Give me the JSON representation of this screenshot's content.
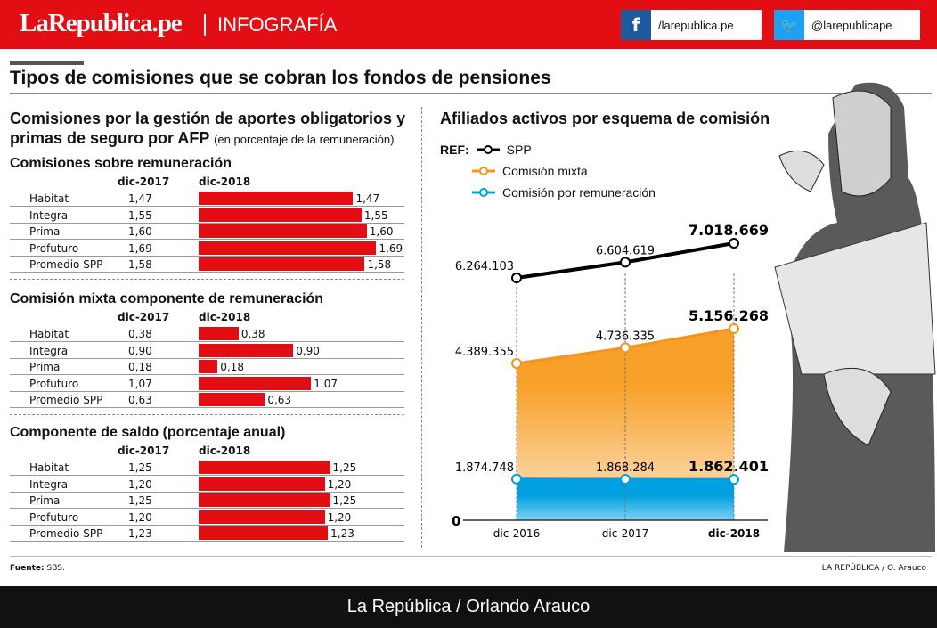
{
  "header": {
    "logo": "LaRepublica.pe",
    "section": "INFOGRAFÍA",
    "facebook": "/larepublica.pe",
    "twitter": "@larepublicape",
    "colors": {
      "brand": "#e30e13",
      "facebook": "#1d5aa0",
      "twitter": "#1da1f2"
    }
  },
  "title": "Tipos de comisiones que se cobran los fondos de pensiones",
  "left": {
    "heading": "Comisiones por la gestión de aportes obligatorios y primas de seguro por AFP",
    "heading_note": "(en porcentaje de la remuneración)",
    "tables": [
      {
        "title": "Comisiones sobre remuneración",
        "col1": "dic-2017",
        "col2": "dic-2018",
        "rows": [
          {
            "name": "Habitat",
            "v2017": "1,47",
            "v2018": "1,47",
            "bar": 1.47
          },
          {
            "name": "Integra",
            "v2017": "1,55",
            "v2018": "1,55",
            "bar": 1.55
          },
          {
            "name": "Prima",
            "v2017": "1,60",
            "v2018": "1,60",
            "bar": 1.6
          },
          {
            "name": "Profuturo",
            "v2017": "1,69",
            "v2018": "1,69",
            "bar": 1.69
          },
          {
            "name": "Promedio SPP",
            "v2017": "1,58",
            "v2018": "1,58",
            "bar": 1.58
          }
        ]
      },
      {
        "title": "Comisión mixta componente de remuneración",
        "col1": "dic-2017",
        "col2": "dic-2018",
        "rows": [
          {
            "name": "Habitat",
            "v2017": "0,38",
            "v2018": "0,38",
            "bar": 0.38
          },
          {
            "name": "Integra",
            "v2017": "0,90",
            "v2018": "0,90",
            "bar": 0.9
          },
          {
            "name": "Prima",
            "v2017": "0,18",
            "v2018": "0,18",
            "bar": 0.18
          },
          {
            "name": "Profuturo",
            "v2017": "1,07",
            "v2018": "1,07",
            "bar": 1.07
          },
          {
            "name": "Promedio SPP",
            "v2017": "0,63",
            "v2018": "0,63",
            "bar": 0.63
          }
        ]
      },
      {
        "title": "Componente de saldo (porcentaje anual)",
        "col1": "dic-2017",
        "col2": "dic-2018",
        "rows": [
          {
            "name": "Habitat",
            "v2017": "1,25",
            "v2018": "1,25",
            "bar": 1.25
          },
          {
            "name": "Integra",
            "v2017": "1,20",
            "v2018": "1,20",
            "bar": 1.2
          },
          {
            "name": "Prima",
            "v2017": "1,25",
            "v2018": "1,25",
            "bar": 1.25
          },
          {
            "name": "Profuturo",
            "v2017": "1,20",
            "v2018": "1,20",
            "bar": 1.2
          },
          {
            "name": "Promedio SPP",
            "v2017": "1,23",
            "v2018": "1,23",
            "bar": 1.23
          }
        ]
      }
    ]
  },
  "chart_data": {
    "type": "line",
    "title": "Afiliados activos por esquema de comisión",
    "legend_prefix": "REF:",
    "categories": [
      "dic-2016",
      "dic-2017",
      "dic-2018"
    ],
    "zero_label": "0",
    "series": [
      {
        "name": "SPP",
        "values": [
          6264103,
          6604619,
          7018669
        ],
        "labels": [
          "6.264.103",
          "6.604.619",
          "7.018.669"
        ],
        "color": "#000000"
      },
      {
        "name": "Comisión mixta",
        "values": [
          4389355,
          4736335,
          5156268
        ],
        "labels": [
          "4.389.355",
          "4.736.335",
          "5.156.268"
        ],
        "color": "#f7941d"
      },
      {
        "name": "Comisión por remuneración",
        "values": [
          1874748,
          1868284,
          1862401
        ],
        "labels": [
          "1.874.748",
          "1.868.284",
          "1.862.401"
        ],
        "color": "#00a0e0"
      }
    ]
  },
  "footer": {
    "source_label": "Fuente:",
    "source": "SBS.",
    "credit": "LA REPÚBLICA / O. Arauco",
    "bar": "La República / Orlando Arauco"
  }
}
